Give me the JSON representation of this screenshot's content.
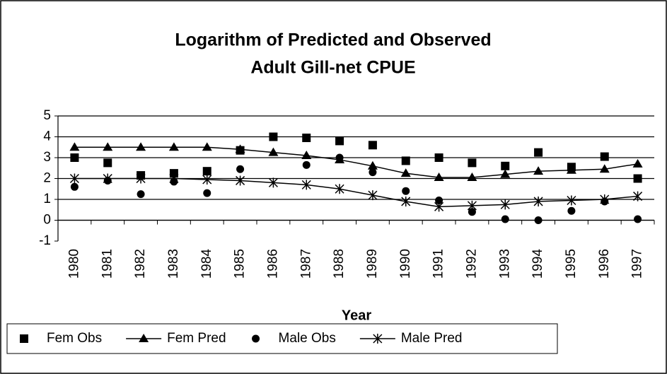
{
  "chart_data": {
    "type": "line",
    "title": [
      "Logarithm of Predicted and Observed",
      "Adult Gill-net CPUE"
    ],
    "x_label": "Year",
    "categories": [
      "1980",
      "1981",
      "1982",
      "1983",
      "1984",
      "1985",
      "1986",
      "1987",
      "1988",
      "1989",
      "1990",
      "1991",
      "1992",
      "1993",
      "1994",
      "1995",
      "1996",
      "1997"
    ],
    "series": [
      {
        "name": "Fem Obs",
        "color": "#000000",
        "marker": "square",
        "line": false,
        "values": [
          3.0,
          2.75,
          2.15,
          2.25,
          2.35,
          3.35,
          4.0,
          3.95,
          3.8,
          3.6,
          2.85,
          3.0,
          2.75,
          2.6,
          3.25,
          2.55,
          3.05,
          2.0
        ]
      },
      {
        "name": "Fem Pred",
        "color": "#000000",
        "marker": "triangle",
        "line": true,
        "values": [
          3.5,
          3.5,
          3.5,
          3.5,
          3.5,
          3.4,
          3.25,
          3.1,
          2.9,
          2.6,
          2.25,
          2.05,
          2.05,
          2.2,
          2.35,
          2.4,
          2.45,
          2.7
        ]
      },
      {
        "name": "Male Obs",
        "color": "#000000",
        "marker": "circle",
        "line": false,
        "values": [
          1.6,
          1.9,
          1.25,
          1.85,
          1.3,
          2.45,
          null,
          2.65,
          3.0,
          2.3,
          1.4,
          0.95,
          0.4,
          0.05,
          0.0,
          0.45,
          0.9,
          0.05
        ]
      },
      {
        "name": "Male Pred",
        "color": "#000000",
        "marker": "star",
        "line": true,
        "values": [
          2.0,
          2.0,
          2.0,
          2.0,
          1.95,
          1.9,
          1.8,
          1.7,
          1.5,
          1.2,
          0.9,
          0.65,
          0.7,
          0.75,
          0.9,
          0.95,
          1.0,
          1.15
        ]
      }
    ],
    "ylim": [
      -1,
      5
    ],
    "yticks": [
      -1,
      0,
      1,
      2,
      3,
      4,
      5
    ],
    "grid": true,
    "legend": "bottom"
  }
}
